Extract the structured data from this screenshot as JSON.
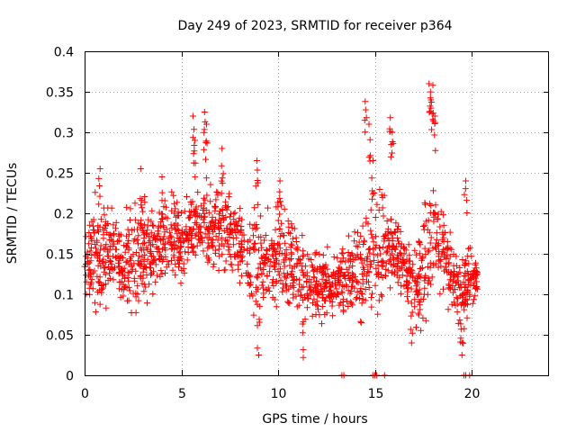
{
  "chart_data": {
    "type": "scatter",
    "title": "Day 249 of 2023, SRMTID for receiver p364",
    "xlabel": "GPS time / hours",
    "ylabel": "SRMTID / TECUs",
    "xlim": [
      0,
      24
    ],
    "ylim": [
      0,
      0.4
    ],
    "xticks": [
      0,
      5,
      10,
      15,
      20
    ],
    "xtick_labels": [
      "0",
      "5",
      "10",
      "15",
      "20"
    ],
    "yticks": [
      0,
      0.05,
      0.1,
      0.15,
      0.2,
      0.25,
      0.3,
      0.35,
      0.4
    ],
    "ytick_labels": [
      "0",
      "0.05",
      "0.1",
      "0.15",
      "0.2",
      "0.25",
      "0.3",
      "0.35",
      "0.4"
    ],
    "grid": true,
    "marker": "+",
    "color": "#ff0000",
    "x_range_of_data": [
      0,
      20.3
    ],
    "envelope": {
      "x": [
        0,
        0.3,
        0.7,
        1.0,
        1.5,
        2.0,
        2.5,
        3.0,
        3.5,
        4.0,
        4.5,
        5.0,
        5.5,
        6.0,
        6.5,
        7.0,
        7.5,
        8.0,
        8.5,
        9.0,
        9.5,
        10.0,
        10.5,
        11.0,
        11.5,
        12.0,
        12.5,
        13.0,
        13.5,
        14.0,
        14.5,
        15.0,
        15.5,
        16.0,
        16.5,
        17.0,
        17.5,
        18.0,
        18.5,
        19.0,
        19.5,
        20.0,
        20.3
      ],
      "low": [
        0.1,
        0.09,
        0.07,
        0.08,
        0.08,
        0.07,
        0.06,
        0.09,
        0.09,
        0.1,
        0.1,
        0.11,
        0.13,
        0.13,
        0.12,
        0.11,
        0.12,
        0.1,
        0.08,
        0.04,
        0.07,
        0.08,
        0.08,
        0.08,
        0.06,
        0.06,
        0.07,
        0.08,
        0.07,
        0.07,
        0.06,
        0.07,
        0.09,
        0.1,
        0.1,
        0.06,
        0.05,
        0.09,
        0.09,
        0.07,
        0.05,
        0.08,
        0.09
      ],
      "high": [
        0.17,
        0.2,
        0.22,
        0.22,
        0.21,
        0.2,
        0.21,
        0.22,
        0.21,
        0.22,
        0.23,
        0.22,
        0.25,
        0.24,
        0.23,
        0.25,
        0.24,
        0.22,
        0.2,
        0.22,
        0.21,
        0.23,
        0.2,
        0.18,
        0.17,
        0.16,
        0.16,
        0.15,
        0.18,
        0.19,
        0.22,
        0.23,
        0.22,
        0.2,
        0.18,
        0.16,
        0.2,
        0.27,
        0.22,
        0.17,
        0.15,
        0.17,
        0.15
      ]
    },
    "spikes": [
      {
        "x": 0.8,
        "y": 0.255
      },
      {
        "x": 2.9,
        "y": 0.255
      },
      {
        "x": 4.0,
        "y": 0.245
      },
      {
        "x": 5.6,
        "y": 0.32
      },
      {
        "x": 5.7,
        "y": 0.29
      },
      {
        "x": 6.2,
        "y": 0.325
      },
      {
        "x": 6.3,
        "y": 0.31
      },
      {
        "x": 7.1,
        "y": 0.28
      },
      {
        "x": 8.9,
        "y": 0.265
      },
      {
        "x": 10.1,
        "y": 0.24
      },
      {
        "x": 14.5,
        "y": 0.338
      },
      {
        "x": 14.7,
        "y": 0.31
      },
      {
        "x": 14.9,
        "y": 0.265
      },
      {
        "x": 15.8,
        "y": 0.318
      },
      {
        "x": 15.9,
        "y": 0.3
      },
      {
        "x": 17.8,
        "y": 0.36
      },
      {
        "x": 18.0,
        "y": 0.358
      },
      {
        "x": 17.9,
        "y": 0.34
      },
      {
        "x": 18.1,
        "y": 0.32
      },
      {
        "x": 19.7,
        "y": 0.24
      },
      {
        "x": 9.0,
        "y": 0.025
      },
      {
        "x": 11.3,
        "y": 0.022
      },
      {
        "x": 16.9,
        "y": 0.04
      },
      {
        "x": 19.5,
        "y": 0.025
      }
    ],
    "zero_points": [
      13.3,
      13.4,
      14.9,
      15.0,
      15.1,
      15.5,
      19.6,
      19.7,
      19.9
    ],
    "n_points": 1700,
    "seed": 249
  }
}
